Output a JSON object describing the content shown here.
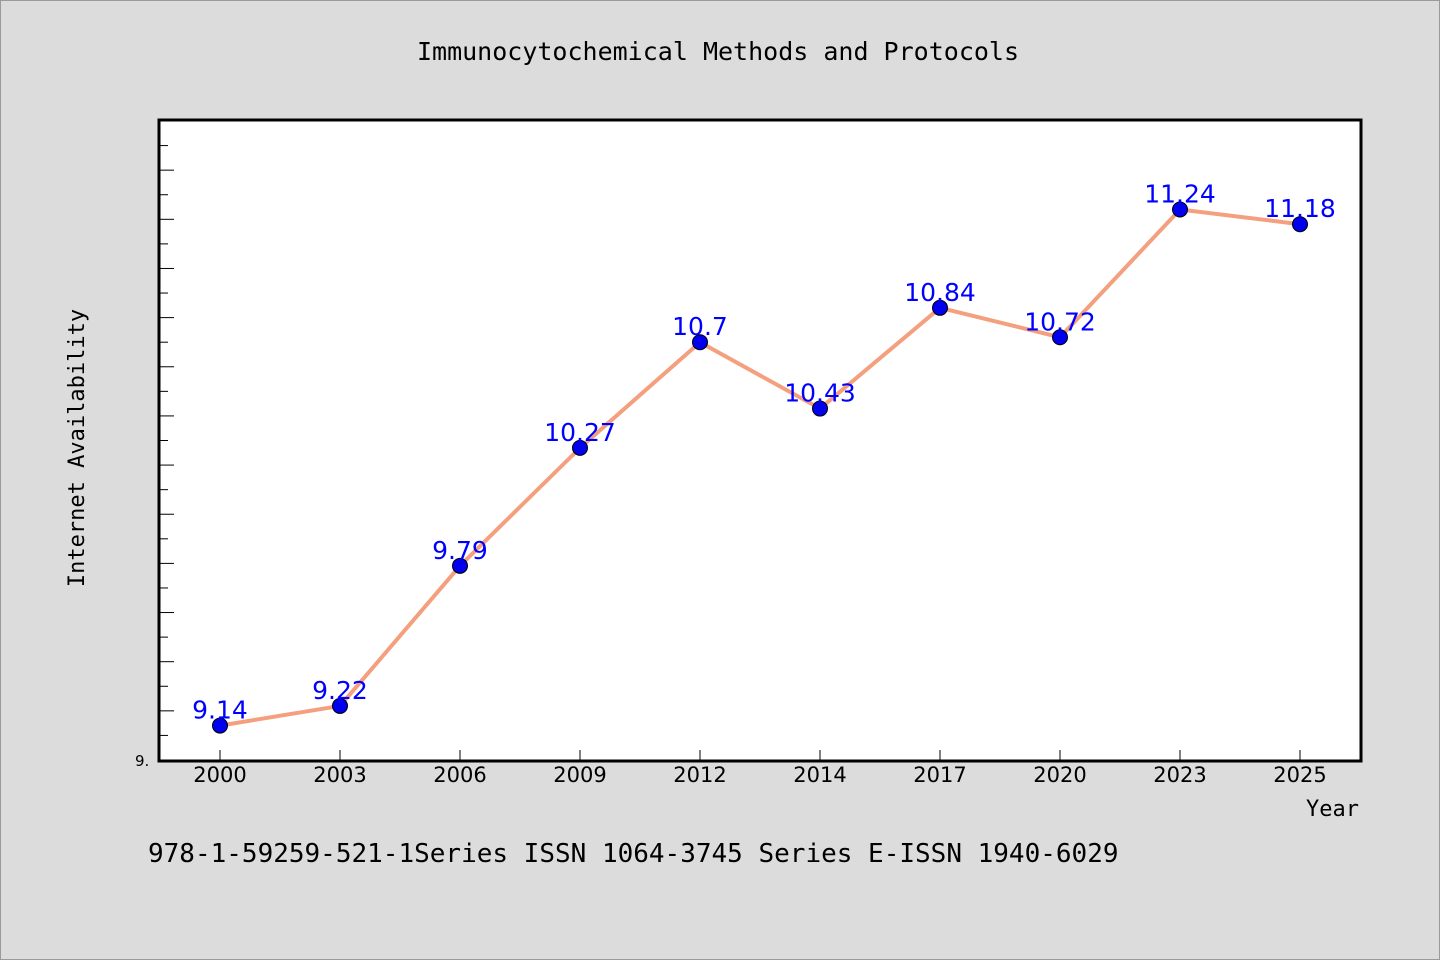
{
  "chart_data": {
    "type": "line",
    "title": "Immunocytochemical Methods and Protocols",
    "xlabel": "Year",
    "ylabel": "Internet Availability",
    "categories": [
      "2000",
      "2003",
      "2006",
      "2009",
      "2012",
      "2014",
      "2017",
      "2020",
      "2023",
      "2025"
    ],
    "series": [
      {
        "values": [
          9.14,
          9.22,
          9.79,
          10.27,
          10.7,
          10.43,
          10.84,
          10.72,
          11.24,
          11.18
        ]
      }
    ],
    "data_labels": [
      "9.14",
      "9.22",
      "9.79",
      "10.27",
      "10.7",
      "10.43",
      "10.84",
      "10.72",
      "11.24",
      "11.18"
    ],
    "ylim": [
      9.0,
      11.6
    ],
    "y_min_label": "9.",
    "grid": false,
    "line_color": "#f4a07f",
    "marker_color": "#0000ee",
    "label_color": "#0000ff"
  },
  "footer_text": "978-1-59259-521-1Series ISSN 1064-3745 Series E-ISSN 1940-6029"
}
